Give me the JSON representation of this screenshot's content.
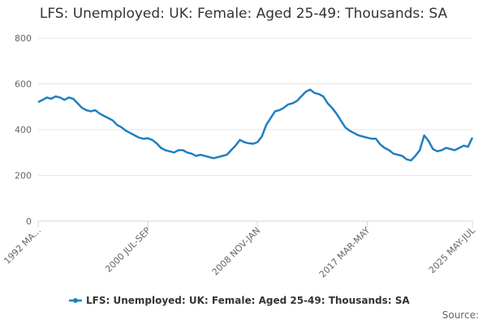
{
  "chart_data": {
    "type": "line",
    "title": "LFS: Unemployed: UK: Female: Aged 25-49: Thousands: SA",
    "categories": [
      "1992 MA...",
      null,
      null,
      null,
      null,
      null,
      null,
      null,
      null,
      null,
      null,
      null,
      null,
      null,
      null,
      null,
      null,
      null,
      null,
      null,
      null,
      null,
      null,
      null,
      null,
      "2000 JUL-SEP",
      null,
      null,
      null,
      null,
      null,
      null,
      null,
      null,
      null,
      null,
      null,
      null,
      null,
      null,
      null,
      null,
      null,
      null,
      null,
      null,
      null,
      null,
      null,
      null,
      "2008 NOV-JAN",
      null,
      null,
      null,
      null,
      null,
      null,
      null,
      null,
      null,
      null,
      null,
      null,
      null,
      null,
      null,
      null,
      null,
      null,
      null,
      null,
      null,
      null,
      null,
      null,
      "2017 MAR-MAY",
      null,
      null,
      null,
      null,
      null,
      null,
      null,
      null,
      null,
      null,
      null,
      null,
      null,
      null,
      null,
      null,
      null,
      null,
      null,
      null,
      null,
      null,
      null,
      "2025 MAY-JUL"
    ],
    "series": [
      {
        "name": "LFS: Unemployed: UK: Female: Aged 25-49: Thousands: SA",
        "color": "#1f7fc0",
        "values": [
          520,
          530,
          540,
          535,
          545,
          540,
          530,
          540,
          535,
          515,
          495,
          485,
          480,
          485,
          470,
          460,
          450,
          440,
          420,
          410,
          395,
          385,
          375,
          365,
          360,
          362,
          355,
          340,
          320,
          310,
          305,
          300,
          310,
          310,
          300,
          295,
          285,
          290,
          285,
          280,
          275,
          280,
          285,
          290,
          310,
          330,
          355,
          345,
          340,
          338,
          345,
          370,
          420,
          450,
          480,
          485,
          495,
          510,
          515,
          525,
          545,
          565,
          575,
          560,
          555,
          545,
          515,
          495,
          470,
          440,
          410,
          395,
          385,
          375,
          370,
          365,
          360,
          360,
          335,
          320,
          310,
          295,
          290,
          285,
          270,
          265,
          285,
          310,
          375,
          350,
          315,
          305,
          310,
          320,
          315,
          310,
          320,
          330,
          325,
          365
        ]
      }
    ],
    "ylim": [
      0,
      800
    ],
    "yticks": [
      0,
      200,
      400,
      600,
      800
    ],
    "grid": true,
    "source": "Source:"
  }
}
